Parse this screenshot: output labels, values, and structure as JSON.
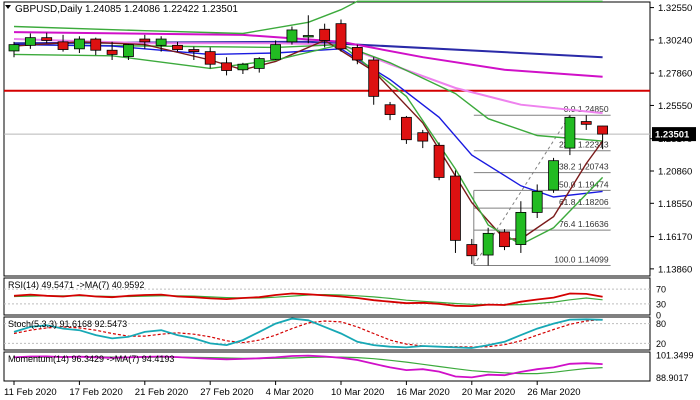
{
  "chart_data": {
    "type": "candlestick",
    "symbol_label": "GBPUSD,Daily",
    "ohlc_label": "1.24085 1.24086 1.22422 1.23501",
    "current_price_label": "1.23501",
    "x_tick_labels": [
      "11 Feb 2020",
      "17 Feb 2020",
      "21 Feb 2020",
      "27 Feb 2020",
      "4 Mar 2020",
      "10 Mar 2020",
      "16 Mar 2020",
      "20 Mar 2020",
      "26 Mar 2020"
    ],
    "x_tick_candles": [
      0,
      4,
      8,
      12,
      16,
      20,
      24,
      28,
      32
    ],
    "y_tick_labels": [
      "1.32550",
      "1.30240",
      "1.27860",
      "1.25550",
      "1.23170",
      "1.20860",
      "1.18550",
      "1.16170",
      "1.13860"
    ],
    "y_tick_values": [
      1.3255,
      1.3024,
      1.2786,
      1.2555,
      1.2317,
      1.2086,
      1.1855,
      1.1617,
      1.1386
    ],
    "price_range": [
      1.1335,
      1.3295
    ],
    "candles": [
      {
        "o": 1.2945,
        "h": 1.301,
        "l": 1.29,
        "c": 1.299
      },
      {
        "o": 1.2985,
        "h": 1.307,
        "l": 1.296,
        "c": 1.304
      },
      {
        "o": 1.304,
        "h": 1.3075,
        "l": 1.3,
        "c": 1.302
      },
      {
        "o": 1.301,
        "h": 1.306,
        "l": 1.294,
        "c": 1.2955
      },
      {
        "o": 1.296,
        "h": 1.305,
        "l": 1.293,
        "c": 1.303
      },
      {
        "o": 1.303,
        "h": 1.304,
        "l": 1.2915,
        "c": 1.295
      },
      {
        "o": 1.295,
        "h": 1.301,
        "l": 1.288,
        "c": 1.292
      },
      {
        "o": 1.2905,
        "h": 1.2995,
        "l": 1.288,
        "c": 1.299
      },
      {
        "o": 1.303,
        "h": 1.306,
        "l": 1.296,
        "c": 1.301
      },
      {
        "o": 1.2985,
        "h": 1.305,
        "l": 1.294,
        "c": 1.303
      },
      {
        "o": 1.2985,
        "h": 1.301,
        "l": 1.294,
        "c": 1.2955
      },
      {
        "o": 1.2955,
        "h": 1.2975,
        "l": 1.288,
        "c": 1.294
      },
      {
        "o": 1.294,
        "h": 1.297,
        "l": 1.282,
        "c": 1.285
      },
      {
        "o": 1.286,
        "h": 1.29,
        "l": 1.277,
        "c": 1.2805
      },
      {
        "o": 1.281,
        "h": 1.286,
        "l": 1.278,
        "c": 1.285
      },
      {
        "o": 1.282,
        "h": 1.29,
        "l": 1.279,
        "c": 1.289
      },
      {
        "o": 1.2885,
        "h": 1.302,
        "l": 1.288,
        "c": 1.299
      },
      {
        "o": 1.301,
        "h": 1.312,
        "l": 1.299,
        "c": 1.3095
      },
      {
        "o": 1.3045,
        "h": 1.32,
        "l": 1.3,
        "c": 1.3055
      },
      {
        "o": 1.31,
        "h": 1.314,
        "l": 1.297,
        "c": 1.302
      },
      {
        "o": 1.314,
        "h": 1.317,
        "l": 1.294,
        "c": 1.296
      },
      {
        "o": 1.297,
        "h": 1.299,
        "l": 1.285,
        "c": 1.288
      },
      {
        "o": 1.288,
        "h": 1.29,
        "l": 1.256,
        "c": 1.262
      },
      {
        "o": 1.256,
        "h": 1.258,
        "l": 1.245,
        "c": 1.249
      },
      {
        "o": 1.247,
        "h": 1.248,
        "l": 1.228,
        "c": 1.231
      },
      {
        "o": 1.236,
        "h": 1.238,
        "l": 1.225,
        "c": 1.23
      },
      {
        "o": 1.227,
        "h": 1.229,
        "l": 1.202,
        "c": 1.204
      },
      {
        "o": 1.205,
        "h": 1.209,
        "l": 1.15,
        "c": 1.159
      },
      {
        "o": 1.156,
        "h": 1.16,
        "l": 1.142,
        "c": 1.148
      },
      {
        "o": 1.1485,
        "h": 1.168,
        "l": 1.141,
        "c": 1.164
      },
      {
        "o": 1.165,
        "h": 1.167,
        "l": 1.152,
        "c": 1.1545
      },
      {
        "o": 1.156,
        "h": 1.187,
        "l": 1.15,
        "c": 1.179
      },
      {
        "o": 1.179,
        "h": 1.199,
        "l": 1.175,
        "c": 1.194
      },
      {
        "o": 1.195,
        "h": 1.218,
        "l": 1.193,
        "c": 1.216
      },
      {
        "o": 1.225,
        "h": 1.2485,
        "l": 1.22,
        "c": 1.247
      },
      {
        "o": 1.244,
        "h": 1.2485,
        "l": 1.238,
        "c": 1.242
      },
      {
        "o": 1.2408,
        "h": 1.2409,
        "l": 1.2242,
        "c": 1.235
      }
    ],
    "horizontal_levels": [
      {
        "price": 1.266,
        "color": "#d40000"
      }
    ],
    "moving_averages": [
      {
        "color": "#2a2aa8",
        "points": [
          [
            0,
            1.3
          ],
          [
            18,
            1.301
          ],
          [
            21,
            1.299
          ],
          [
            36,
            1.29
          ]
        ]
      },
      {
        "color": "#d010c8",
        "points": [
          [
            0,
            1.308
          ],
          [
            14,
            1.306
          ],
          [
            20,
            1.301
          ],
          [
            25,
            1.29
          ],
          [
            30,
            1.281
          ],
          [
            36,
            1.276
          ]
        ]
      },
      {
        "color": "#ee82ee",
        "points": [
          [
            0,
            1.303
          ],
          [
            8,
            1.3
          ],
          [
            16,
            1.3
          ],
          [
            20,
            1.299
          ],
          [
            23,
            1.285
          ],
          [
            27,
            1.268
          ],
          [
            31,
            1.256
          ],
          [
            36,
            1.25
          ]
        ]
      },
      {
        "color": "#3caa3c",
        "points": [
          [
            0,
            1.299
          ],
          [
            8,
            1.298
          ],
          [
            16,
            1.297
          ],
          [
            20,
            1.299
          ],
          [
            23,
            1.286
          ],
          [
            27,
            1.264
          ],
          [
            29,
            1.246
          ],
          [
            32,
            1.234
          ],
          [
            36,
            1.23
          ]
        ]
      },
      {
        "color": "#1a1ae0",
        "points": [
          [
            0,
            1.299
          ],
          [
            6,
            1.298
          ],
          [
            12,
            1.292
          ],
          [
            16,
            1.293
          ],
          [
            20,
            1.296
          ],
          [
            23,
            1.274
          ],
          [
            26,
            1.247
          ],
          [
            28,
            1.22
          ],
          [
            31,
            1.198
          ],
          [
            33,
            1.19
          ],
          [
            36,
            1.194
          ]
        ]
      },
      {
        "color": "#7a1a1a",
        "points": [
          [
            0,
            1.298
          ],
          [
            4,
            1.301
          ],
          [
            8,
            1.299
          ],
          [
            12,
            1.288
          ],
          [
            14,
            1.281
          ],
          [
            16,
            1.287
          ],
          [
            19,
            1.302
          ],
          [
            22,
            1.28
          ],
          [
            25,
            1.243
          ],
          [
            28,
            1.186
          ],
          [
            30,
            1.16
          ],
          [
            31,
            1.16
          ],
          [
            33,
            1.176
          ],
          [
            35,
            1.214
          ],
          [
            36,
            1.23
          ]
        ]
      },
      {
        "color": "#3caa3c",
        "points": [
          [
            0,
            1.292
          ],
          [
            6,
            1.291
          ],
          [
            12,
            1.282
          ],
          [
            16,
            1.288
          ],
          [
            20,
            1.299
          ],
          [
            24,
            1.262
          ],
          [
            27,
            1.21
          ],
          [
            29,
            1.17
          ],
          [
            31,
            1.156
          ],
          [
            33,
            1.168
          ],
          [
            36,
            1.204
          ]
        ]
      },
      {
        "color": "#3caa3c",
        "points": [
          [
            0,
            1.312
          ],
          [
            8,
            1.309
          ],
          [
            14,
            1.307
          ],
          [
            18,
            1.315
          ],
          [
            20,
            1.324
          ],
          [
            21,
            1.33
          ],
          [
            36,
            1.33
          ]
        ]
      }
    ],
    "fibonacci": {
      "color": "#808080",
      "levels": [
        {
          "ratio": "0.0",
          "price": 1.2485,
          "label": "0.0 1.24850"
        },
        {
          "ratio": "23.6",
          "price": 1.22313,
          "label": "23.6 1.22313"
        },
        {
          "ratio": "38.2",
          "price": 1.20743,
          "label": "38.2 1.20743"
        },
        {
          "ratio": "50.0",
          "price": 1.19474,
          "label": "50.0 1.19474"
        },
        {
          "ratio": "61.8",
          "price": 1.18206,
          "label": "61.8 1.18206"
        },
        {
          "ratio": "76.4",
          "price": 1.16636,
          "label": "76.4 1.16636"
        },
        {
          "ratio": "100.0",
          "price": 1.14099,
          "label": "100.0 1.14099"
        }
      ]
    },
    "rsi": {
      "label": "RSI(14) 49.5471 ->MA(7) 40.9592",
      "axis_labels": [
        "70",
        "30",
        "0"
      ],
      "axis_values": [
        70,
        30,
        0
      ],
      "main_color": "#d40000",
      "signal_color": "#3caa3c",
      "values": [
        52,
        55,
        52,
        50,
        54,
        50,
        48,
        52,
        54,
        55,
        50,
        48,
        45,
        43,
        46,
        48,
        54,
        58,
        56,
        53,
        50,
        46,
        40,
        36,
        32,
        33,
        30,
        25,
        24,
        28,
        27,
        36,
        42,
        47,
        58,
        57,
        49.5
      ],
      "signal": [
        50,
        51,
        52,
        52,
        52,
        51,
        50,
        50,
        51,
        52,
        52,
        51,
        49,
        47,
        46,
        46,
        48,
        51,
        54,
        55,
        54,
        52,
        49,
        45,
        40,
        37,
        34,
        31,
        29,
        28,
        27,
        28,
        31,
        35,
        41,
        46,
        41
      ]
    },
    "stochastic": {
      "label": "Stoch(5,3,3) 91.6168 92.5473",
      "axis_labels": [
        "80",
        "20"
      ],
      "axis_values": [
        80,
        20
      ],
      "main_color": "#17a8b5",
      "signal_color": "#d40000",
      "values": [
        55,
        70,
        75,
        65,
        60,
        45,
        35,
        40,
        55,
        60,
        45,
        35,
        20,
        15,
        30,
        55,
        80,
        95,
        90,
        70,
        50,
        25,
        15,
        10,
        8,
        12,
        10,
        8,
        6,
        15,
        25,
        45,
        65,
        80,
        92,
        93,
        91.6
      ],
      "signal": [
        50,
        60,
        67,
        70,
        67,
        60,
        50,
        42,
        42,
        48,
        52,
        48,
        40,
        28,
        22,
        30,
        45,
        65,
        82,
        88,
        85,
        70,
        50,
        30,
        18,
        12,
        10,
        10,
        9,
        10,
        16,
        28,
        45,
        62,
        78,
        88,
        92.5
      ]
    },
    "momentum": {
      "label": "Momentum(14) 96.3429 ->MA(7) 94.4193",
      "axis_labels": [
        "101.3499",
        "88.9017"
      ],
      "axis_values": [
        101.3499,
        88.9017
      ],
      "main_color": "#d010c8",
      "signal_color": "#3caa3c",
      "values": [
        100,
        100.5,
        100.6,
        100.2,
        100.4,
        100.1,
        99.8,
        100,
        100.3,
        100.5,
        100.2,
        99.7,
        99.3,
        99,
        99.2,
        99.5,
        100,
        100.8,
        101,
        100.5,
        99.8,
        98.6,
        96.5,
        94.5,
        93,
        93.5,
        92.2,
        89.5,
        89,
        90.5,
        90.2,
        92,
        93.5,
        94.5,
        96.5,
        96.8,
        96.3
      ],
      "signal": [
        100,
        100.1,
        100.2,
        100.3,
        100.3,
        100.3,
        100.2,
        100.1,
        100.1,
        100.2,
        100.2,
        100.1,
        99.9,
        99.7,
        99.5,
        99.4,
        99.5,
        99.7,
        100,
        100.2,
        100.2,
        99.9,
        99.3,
        98.4,
        97.4,
        96.2,
        95,
        93.8,
        92.7,
        92,
        91.5,
        91.1,
        91.1,
        91.8,
        92.9,
        93.9,
        94.4
      ]
    }
  }
}
